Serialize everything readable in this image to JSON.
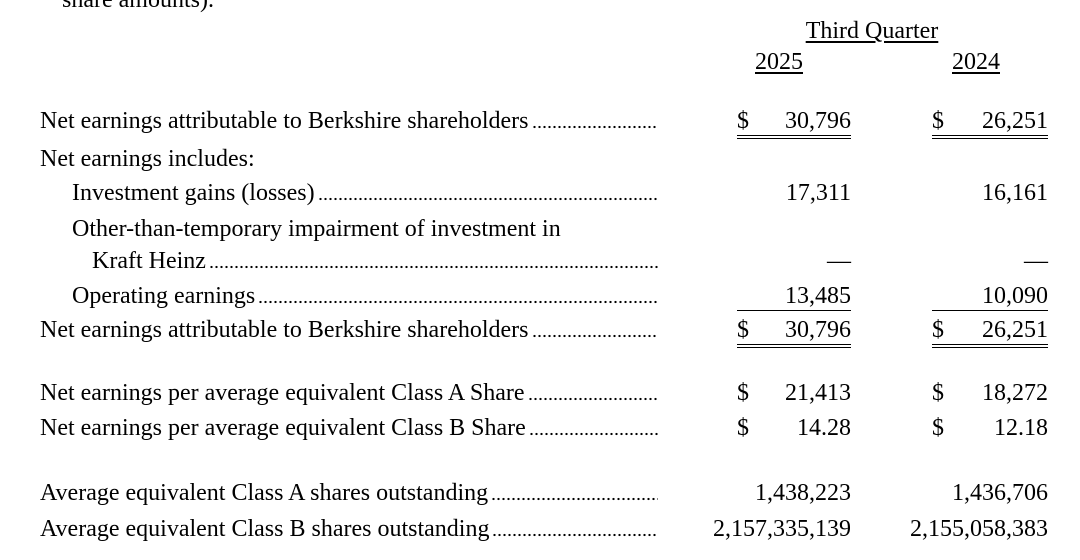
{
  "header": {
    "note": "share amounts).",
    "period": "Third Quarter",
    "years": [
      "2025",
      "2024"
    ]
  },
  "rows": [
    {
      "label": [
        "Net earnings attributable to Berkshire shareholders"
      ],
      "cells": [
        {
          "currency": "$",
          "value": "30,796"
        },
        {
          "currency": "$",
          "value": "26,251"
        }
      ]
    },
    {
      "label": [
        "Net earnings includes:"
      ]
    },
    {
      "label": [
        "Investment gains (losses)"
      ],
      "cells": [
        {
          "value": "17,311"
        },
        {
          "value": "16,161"
        }
      ]
    },
    {
      "label": [
        "Other-than-temporary impairment of investment in",
        "Kraft Heinz"
      ],
      "cells": [
        {
          "value": "—"
        },
        {
          "value": "—"
        }
      ]
    },
    {
      "label": [
        "Operating earnings"
      ],
      "cells": [
        {
          "value": "13,485"
        },
        {
          "value": "10,090"
        }
      ]
    },
    {
      "label": [
        "Net earnings attributable to Berkshire shareholders"
      ],
      "cells": [
        {
          "currency": "$",
          "value": "30,796"
        },
        {
          "currency": "$",
          "value": "26,251"
        }
      ]
    },
    {
      "label": [
        "Net earnings per average equivalent Class A Share"
      ],
      "cells": [
        {
          "currency": "$",
          "value": "21,413"
        },
        {
          "currency": "$",
          "value": "18,272"
        }
      ]
    },
    {
      "label": [
        "Net earnings per average equivalent Class B Share"
      ],
      "cells": [
        {
          "currency": "$",
          "value": "14.28"
        },
        {
          "currency": "$",
          "value": "12.18"
        }
      ]
    },
    {
      "label": [
        "Average equivalent Class A shares outstanding"
      ],
      "cells": [
        {
          "value": "1,438,223"
        },
        {
          "value": "1,436,706"
        }
      ]
    },
    {
      "label": [
        "Average equivalent Class B shares outstanding"
      ],
      "cells": [
        {
          "value": "2,157,335,139"
        },
        {
          "value": "2,155,058,383"
        }
      ]
    }
  ]
}
